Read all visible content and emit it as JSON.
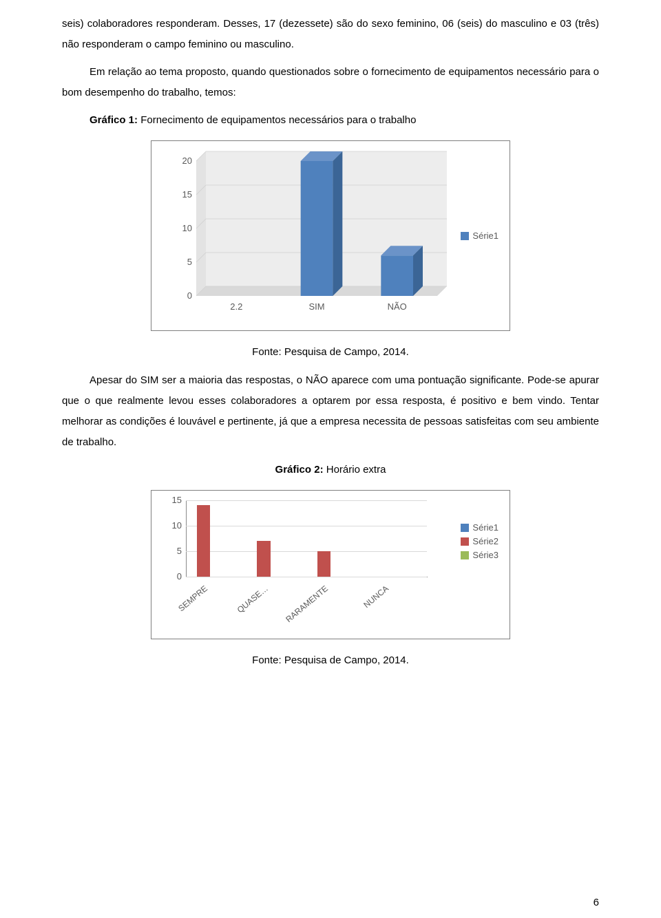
{
  "para1": "seis) colaboradores responderam. Desses, 17 (dezessete) são do sexo feminino, 06 (seis) do masculino e 03 (três) não responderam o campo feminino ou masculino.",
  "para2": "Em relação ao tema proposto, quando questionados sobre o fornecimento de equipamentos necessário para o bom desempenho do trabalho, temos:",
  "g1_label": "Gráfico 1: ",
  "g1_title": "Fornecimento de equipamentos necessários para o trabalho",
  "fonte": "Fonte: Pesquisa de Campo, 2014.",
  "para3": "Apesar do SIM ser a maioria das respostas, o NÃO aparece com uma pontuação significante. Pode-se apurar que o  que realmente levou esses colaboradores a optarem por essa resposta, é positivo e bem vindo. Tentar melhorar as condições é louvável e pertinente, já que a empresa necessita de pessoas satisfeitas com seu ambiente de trabalho.",
  "g2_label": "Gráfico 2: ",
  "g2_title": "Horário extra",
  "pageNum": "6",
  "chart1": {
    "type": "bar-3d",
    "categories": [
      "2.2",
      "SIM",
      "NÃO"
    ],
    "values": [
      0,
      20,
      6
    ],
    "bar_color": "#4f81bd",
    "bar_top_color": "#6b93c8",
    "bar_side_color": "#3b6596",
    "floor_color": "#d9d9d9",
    "wall_color": "#ededed",
    "ylim": [
      0,
      20
    ],
    "yticks": [
      0,
      5,
      10,
      15,
      20
    ],
    "legend": [
      {
        "label": "Série1",
        "color": "#4f81bd"
      }
    ],
    "font_color": "#595959",
    "fontsize": 13
  },
  "chart2": {
    "type": "bar",
    "categories": [
      "SEMPRE",
      "QUASE…",
      "RARAMENTE",
      "NUNCA"
    ],
    "values": [
      14,
      7,
      5,
      0
    ],
    "bar_color": "#c0504d",
    "ylim": [
      0,
      15
    ],
    "yticks": [
      0,
      5,
      10,
      15
    ],
    "grid_color": "#d9d9d9",
    "legend": [
      {
        "label": "Série1",
        "color": "#4f81bd"
      },
      {
        "label": "Série2",
        "color": "#c0504d"
      },
      {
        "label": "Série3",
        "color": "#9bbb59"
      }
    ],
    "font_color": "#595959",
    "fontsize": 13
  }
}
